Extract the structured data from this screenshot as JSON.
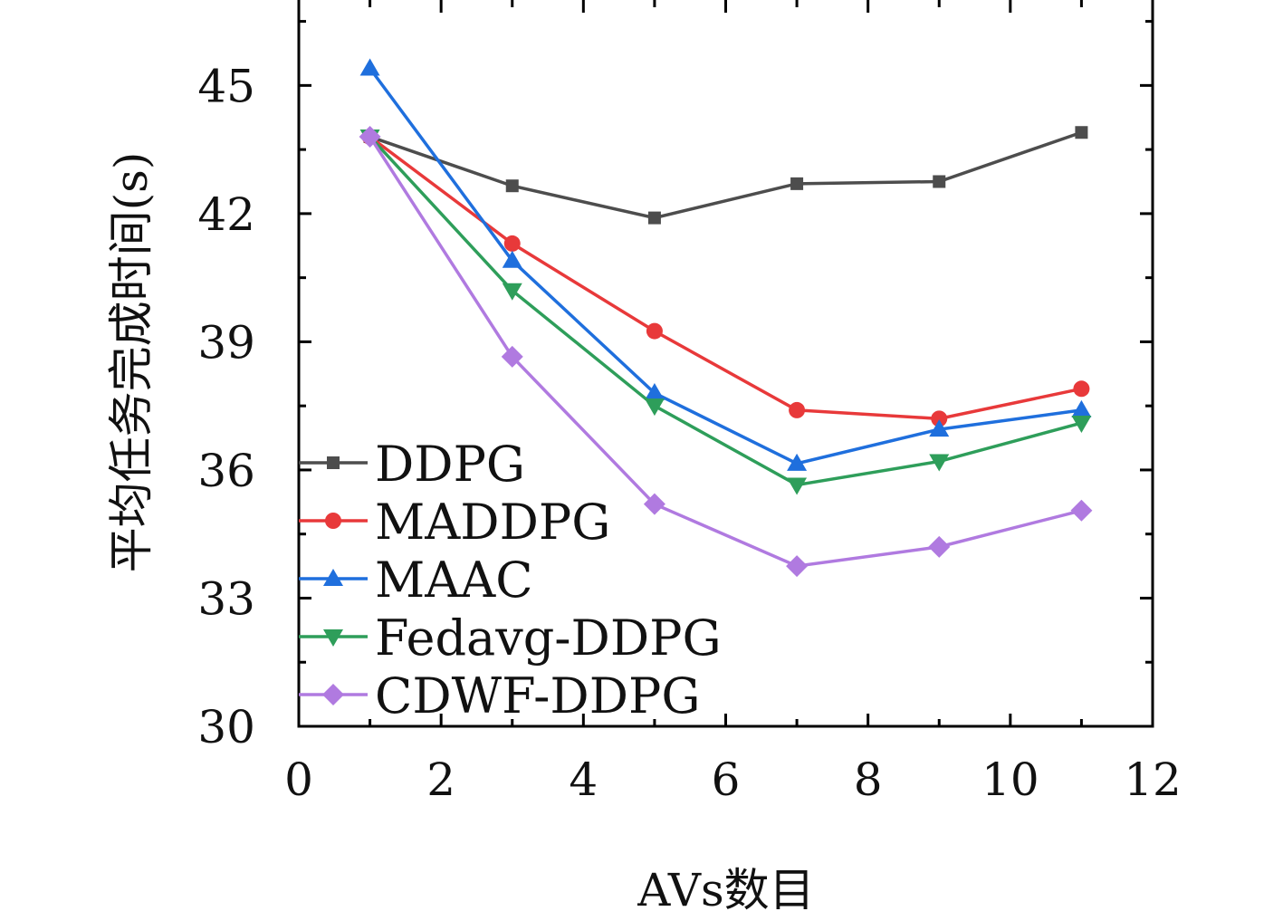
{
  "chart_data": {
    "type": "line",
    "title": "",
    "xlabel": "AVs数目",
    "ylabel": "平均任务完成时间(s)",
    "xlim": [
      0,
      12
    ],
    "ylim": [
      30,
      47
    ],
    "x_ticks": [
      "0",
      "2",
      "4",
      "6",
      "8",
      "10",
      "12"
    ],
    "y_ticks": [
      "30",
      "33",
      "36",
      "39",
      "42",
      "45"
    ],
    "grid": false,
    "legend_position": "lower-left",
    "x": [
      1,
      3,
      5,
      7,
      9,
      11
    ],
    "series": [
      {
        "name": "DDPG",
        "color": "#4d4d4d",
        "marker": "square",
        "values": [
          43.8,
          42.65,
          41.9,
          42.7,
          42.75,
          43.9
        ]
      },
      {
        "name": "MADDPG",
        "color": "#e8393a",
        "marker": "circle",
        "values": [
          43.8,
          41.3,
          39.25,
          37.4,
          37.2,
          37.9
        ]
      },
      {
        "name": "MAAC",
        "color": "#1f6fdd",
        "marker": "triangle-up",
        "values": [
          45.4,
          40.9,
          37.8,
          36.15,
          36.95,
          37.4
        ]
      },
      {
        "name": "Fedavg-DDPG",
        "color": "#2e9e5a",
        "marker": "triangle-down",
        "values": [
          43.8,
          40.2,
          37.5,
          35.65,
          36.2,
          37.1
        ]
      },
      {
        "name": "CDWF-DDPG",
        "color": "#b07ae0",
        "marker": "diamond",
        "values": [
          43.8,
          38.65,
          35.2,
          33.75,
          34.2,
          35.05
        ]
      }
    ]
  }
}
